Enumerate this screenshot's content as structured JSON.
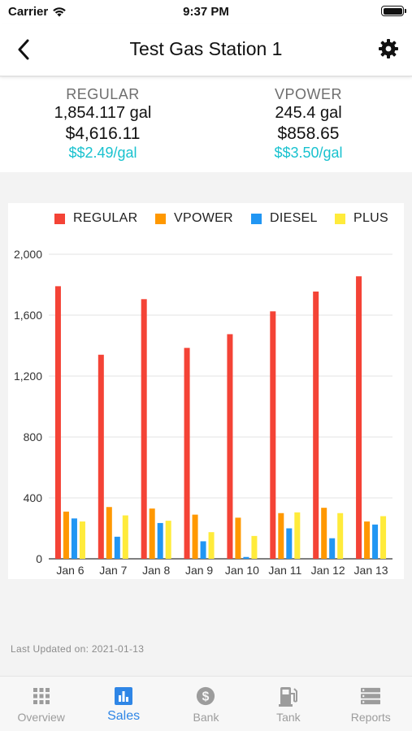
{
  "status_bar": {
    "carrier": "Carrier",
    "time": "9:37 PM"
  },
  "nav": {
    "title": "Test Gas Station 1"
  },
  "summary": [
    {
      "name": "REGULAR",
      "gallons": "1,854.117 gal",
      "amount": "$4,616.11",
      "rate": "$$2.49/gal"
    },
    {
      "name": "VPOWER",
      "gallons": "245.4 gal",
      "amount": "$858.65",
      "rate": "$$3.50/gal"
    }
  ],
  "colors": {
    "accent": "#2f86e6",
    "rate": "#19c2cf",
    "regular": "#f44336",
    "vpower": "#ff9800",
    "diesel": "#2196f3",
    "plus": "#ffeb3b"
  },
  "chart_data": {
    "type": "bar",
    "categories": [
      "Jan 6",
      "Jan 7",
      "Jan 8",
      "Jan 9",
      "Jan 10",
      "Jan 11",
      "Jan 12",
      "Jan 13"
    ],
    "series": [
      {
        "name": "REGULAR",
        "color": "#f44336",
        "values": [
          1790,
          1340,
          1705,
          1385,
          1475,
          1625,
          1755,
          1855
        ]
      },
      {
        "name": "VPOWER",
        "color": "#ff9800",
        "values": [
          310,
          340,
          330,
          290,
          270,
          300,
          335,
          245
        ]
      },
      {
        "name": "DIESEL",
        "color": "#2196f3",
        "values": [
          265,
          145,
          235,
          115,
          12,
          200,
          135,
          225
        ]
      },
      {
        "name": "PLUS",
        "color": "#ffeb3b",
        "values": [
          245,
          285,
          250,
          175,
          150,
          305,
          300,
          280
        ]
      }
    ],
    "y_ticks": [
      "0",
      "400",
      "800",
      "1,200",
      "1,600",
      "2,000"
    ],
    "ylim": [
      0,
      2000
    ],
    "grid": true,
    "legend_position": "top"
  },
  "footer": {
    "last_updated": "Last Updated on: 2021-01-13"
  },
  "tabs": [
    {
      "label": "Overview",
      "icon": "grid-icon",
      "active": false
    },
    {
      "label": "Sales",
      "icon": "bar-chart-icon",
      "active": true
    },
    {
      "label": "Bank",
      "icon": "dollar-coin-icon",
      "active": false
    },
    {
      "label": "Tank",
      "icon": "fuel-pump-icon",
      "active": false
    },
    {
      "label": "Reports",
      "icon": "list-icon",
      "active": false
    }
  ]
}
